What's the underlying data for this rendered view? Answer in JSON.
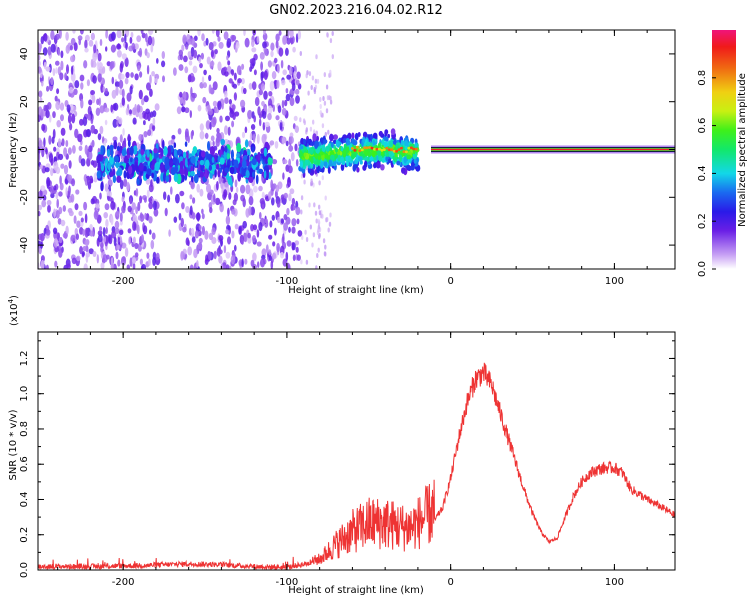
{
  "title": "GN02.2023.216.04.02.R12",
  "chart_data": [
    {
      "type": "heatmap",
      "xlabel": "Height of straight line (km)",
      "ylabel": "Frequency (Hz)",
      "xlim": [
        -252,
        137
      ],
      "ylim": [
        -50,
        50
      ],
      "x_ticks": [
        "-200",
        "-100",
        "0",
        "100"
      ],
      "y_ticks": [
        "-40",
        "-20",
        "0",
        "20",
        "40"
      ],
      "colorbar": {
        "label": "Normalized spectral amplitude",
        "range": [
          0,
          1
        ],
        "ticks": [
          "0.0",
          "0.2",
          "0.4",
          "0.6",
          "0.8"
        ]
      },
      "features": [
        {
          "region": "broadband noise",
          "x_range": [
            -252,
            -92
          ],
          "freq_range": [
            -50,
            50
          ],
          "amplitude": 0.1
        },
        {
          "region": "noise gap",
          "x_range": [
            -178,
            -165
          ],
          "freq_range": [
            -50,
            50
          ],
          "amplitude": 0.03
        },
        {
          "region": "signal cluster",
          "x_range": [
            -215,
            -110
          ],
          "freq_range": [
            -14,
            2
          ],
          "amplitude": 0.35
        },
        {
          "region": "signal onset",
          "x_range": [
            -92,
            -20
          ],
          "freq_range": [
            -10,
            5
          ],
          "amplitude": 0.5
        },
        {
          "region": "steady tone",
          "x_range": [
            -12,
            137
          ],
          "freq_range": [
            -1,
            1
          ],
          "amplitude": 0.9
        }
      ]
    },
    {
      "type": "line",
      "xlabel": "Height of straight line (km)",
      "ylabel": "SNR (10 * v/v)",
      "y_multiplier": "(x10",
      "y_multiplier_exp": "4",
      "y_multiplier_close": ")",
      "xlim": [
        -252,
        137
      ],
      "ylim": [
        0,
        1.35
      ],
      "x_ticks": [
        "-200",
        "-100",
        "0",
        "100"
      ],
      "y_ticks": [
        "0.0",
        "0.2",
        "0.4",
        "0.6",
        "0.8",
        "1.0",
        "1.2"
      ],
      "color": "#ee3333",
      "series": [
        {
          "x": [
            -252,
            -220,
            -190,
            -160,
            -140,
            -120,
            -100,
            -80,
            -70,
            -60,
            -50,
            -40,
            -30,
            -25,
            -20,
            -15,
            -10,
            -5,
            0,
            5,
            10,
            15,
            20,
            25,
            30,
            35,
            40,
            45,
            50,
            55,
            60,
            65,
            70,
            75,
            80,
            85,
            90,
            95,
            100,
            105,
            110,
            120,
            130,
            137
          ],
          "y": [
            0.02,
            0.02,
            0.025,
            0.035,
            0.03,
            0.02,
            0.015,
            0.05,
            0.12,
            0.18,
            0.22,
            0.22,
            0.2,
            0.2,
            0.22,
            0.25,
            0.28,
            0.35,
            0.52,
            0.75,
            0.95,
            1.08,
            1.12,
            1.05,
            0.9,
            0.75,
            0.6,
            0.45,
            0.32,
            0.22,
            0.16,
            0.18,
            0.3,
            0.42,
            0.5,
            0.55,
            0.57,
            0.58,
            0.58,
            0.55,
            0.46,
            0.4,
            0.35,
            0.31
          ]
        }
      ]
    }
  ]
}
